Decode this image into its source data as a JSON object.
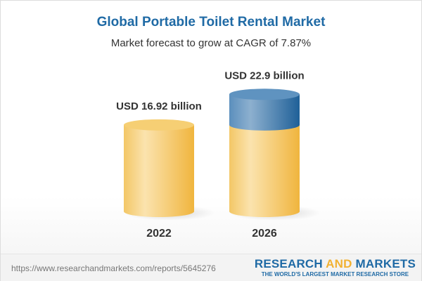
{
  "chart_data": {
    "type": "bar",
    "title": "Global Portable Toilet Rental Market",
    "subtitle": "Market forecast to grow at CAGR of 7.87%",
    "categories": [
      "2022",
      "2026"
    ],
    "values": [
      16.92,
      22.9
    ],
    "data_labels": [
      "USD 16.92 billion",
      "USD 22.9 billion"
    ],
    "unit": "USD billion",
    "colors": {
      "base": "#f3c35a",
      "growth": "#4f86b5"
    }
  },
  "footer": {
    "url": "https://www.researchandmarkets.com/reports/5645276",
    "logo_part1": "RESEARCH ",
    "logo_part2": "AND",
    "logo_part3": " MARKETS",
    "tagline": "THE WORLD'S LARGEST MARKET RESEARCH STORE"
  }
}
